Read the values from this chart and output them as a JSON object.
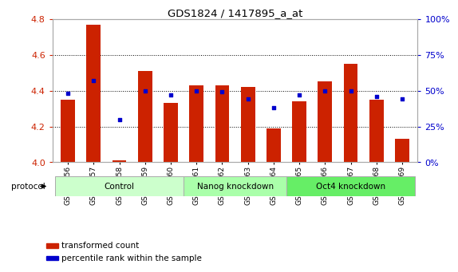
{
  "title": "GDS1824 / 1417895_a_at",
  "samples": [
    "GSM94856",
    "GSM94857",
    "GSM94858",
    "GSM94859",
    "GSM94860",
    "GSM94861",
    "GSM94862",
    "GSM94863",
    "GSM94864",
    "GSM94865",
    "GSM94866",
    "GSM94867",
    "GSM94868",
    "GSM94869"
  ],
  "transformed_count": [
    4.35,
    4.77,
    4.01,
    4.51,
    4.33,
    4.43,
    4.43,
    4.42,
    4.19,
    4.34,
    4.45,
    4.55,
    4.35,
    4.13
  ],
  "percentile_rank": [
    48,
    57,
    30,
    50,
    47,
    50,
    49,
    44,
    38,
    47,
    50,
    50,
    46,
    44
  ],
  "bar_bottom": 4.0,
  "ylim_left": [
    4.0,
    4.8
  ],
  "ylim_right": [
    0,
    100
  ],
  "yticks_left": [
    4.0,
    4.2,
    4.4,
    4.6,
    4.8
  ],
  "yticks_right": [
    0,
    25,
    50,
    75,
    100
  ],
  "ytick_labels_right": [
    "0%",
    "25%",
    "50%",
    "75%",
    "100%"
  ],
  "groups": [
    {
      "label": "Control",
      "start": 0,
      "end": 5
    },
    {
      "label": "Nanog knockdown",
      "start": 5,
      "end": 9
    },
    {
      "label": "Oct4 knockdown",
      "start": 9,
      "end": 14
    }
  ],
  "group_colors": [
    "#ccffcc",
    "#aaffaa",
    "#66ee66"
  ],
  "bar_color": "#cc2200",
  "dot_color": "#0000cc",
  "bar_width": 0.55,
  "tick_color_left": "#cc2200",
  "tick_color_right": "#0000cc",
  "grid_color": "#000000",
  "legend_items": [
    {
      "label": "transformed count",
      "color": "#cc2200"
    },
    {
      "label": "percentile rank within the sample",
      "color": "#0000cc"
    }
  ],
  "protocol_label": "protocol"
}
